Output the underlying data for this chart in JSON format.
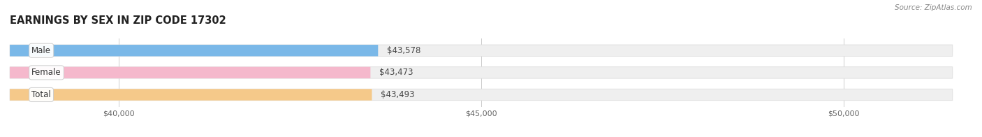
{
  "title": "EARNINGS BY SEX IN ZIP CODE 17302",
  "source": "Source: ZipAtlas.com",
  "categories": [
    "Male",
    "Female",
    "Total"
  ],
  "values": [
    43578,
    43473,
    43493
  ],
  "bar_colors": [
    "#7ab8e8",
    "#f5b8cc",
    "#f5c98a"
  ],
  "bg_bar_color": "#efefef",
  "xmin": 38500,
  "xmax": 51500,
  "xticks": [
    40000,
    45000,
    50000
  ],
  "xtick_labels": [
    "$40,000",
    "$45,000",
    "$50,000"
  ],
  "background_color": "#ffffff",
  "bar_height": 0.52,
  "figsize": [
    14.06,
    1.96
  ],
  "dpi": 100,
  "value_fontsize": 8.5,
  "label_fontsize": 8.5,
  "title_fontsize": 10.5
}
